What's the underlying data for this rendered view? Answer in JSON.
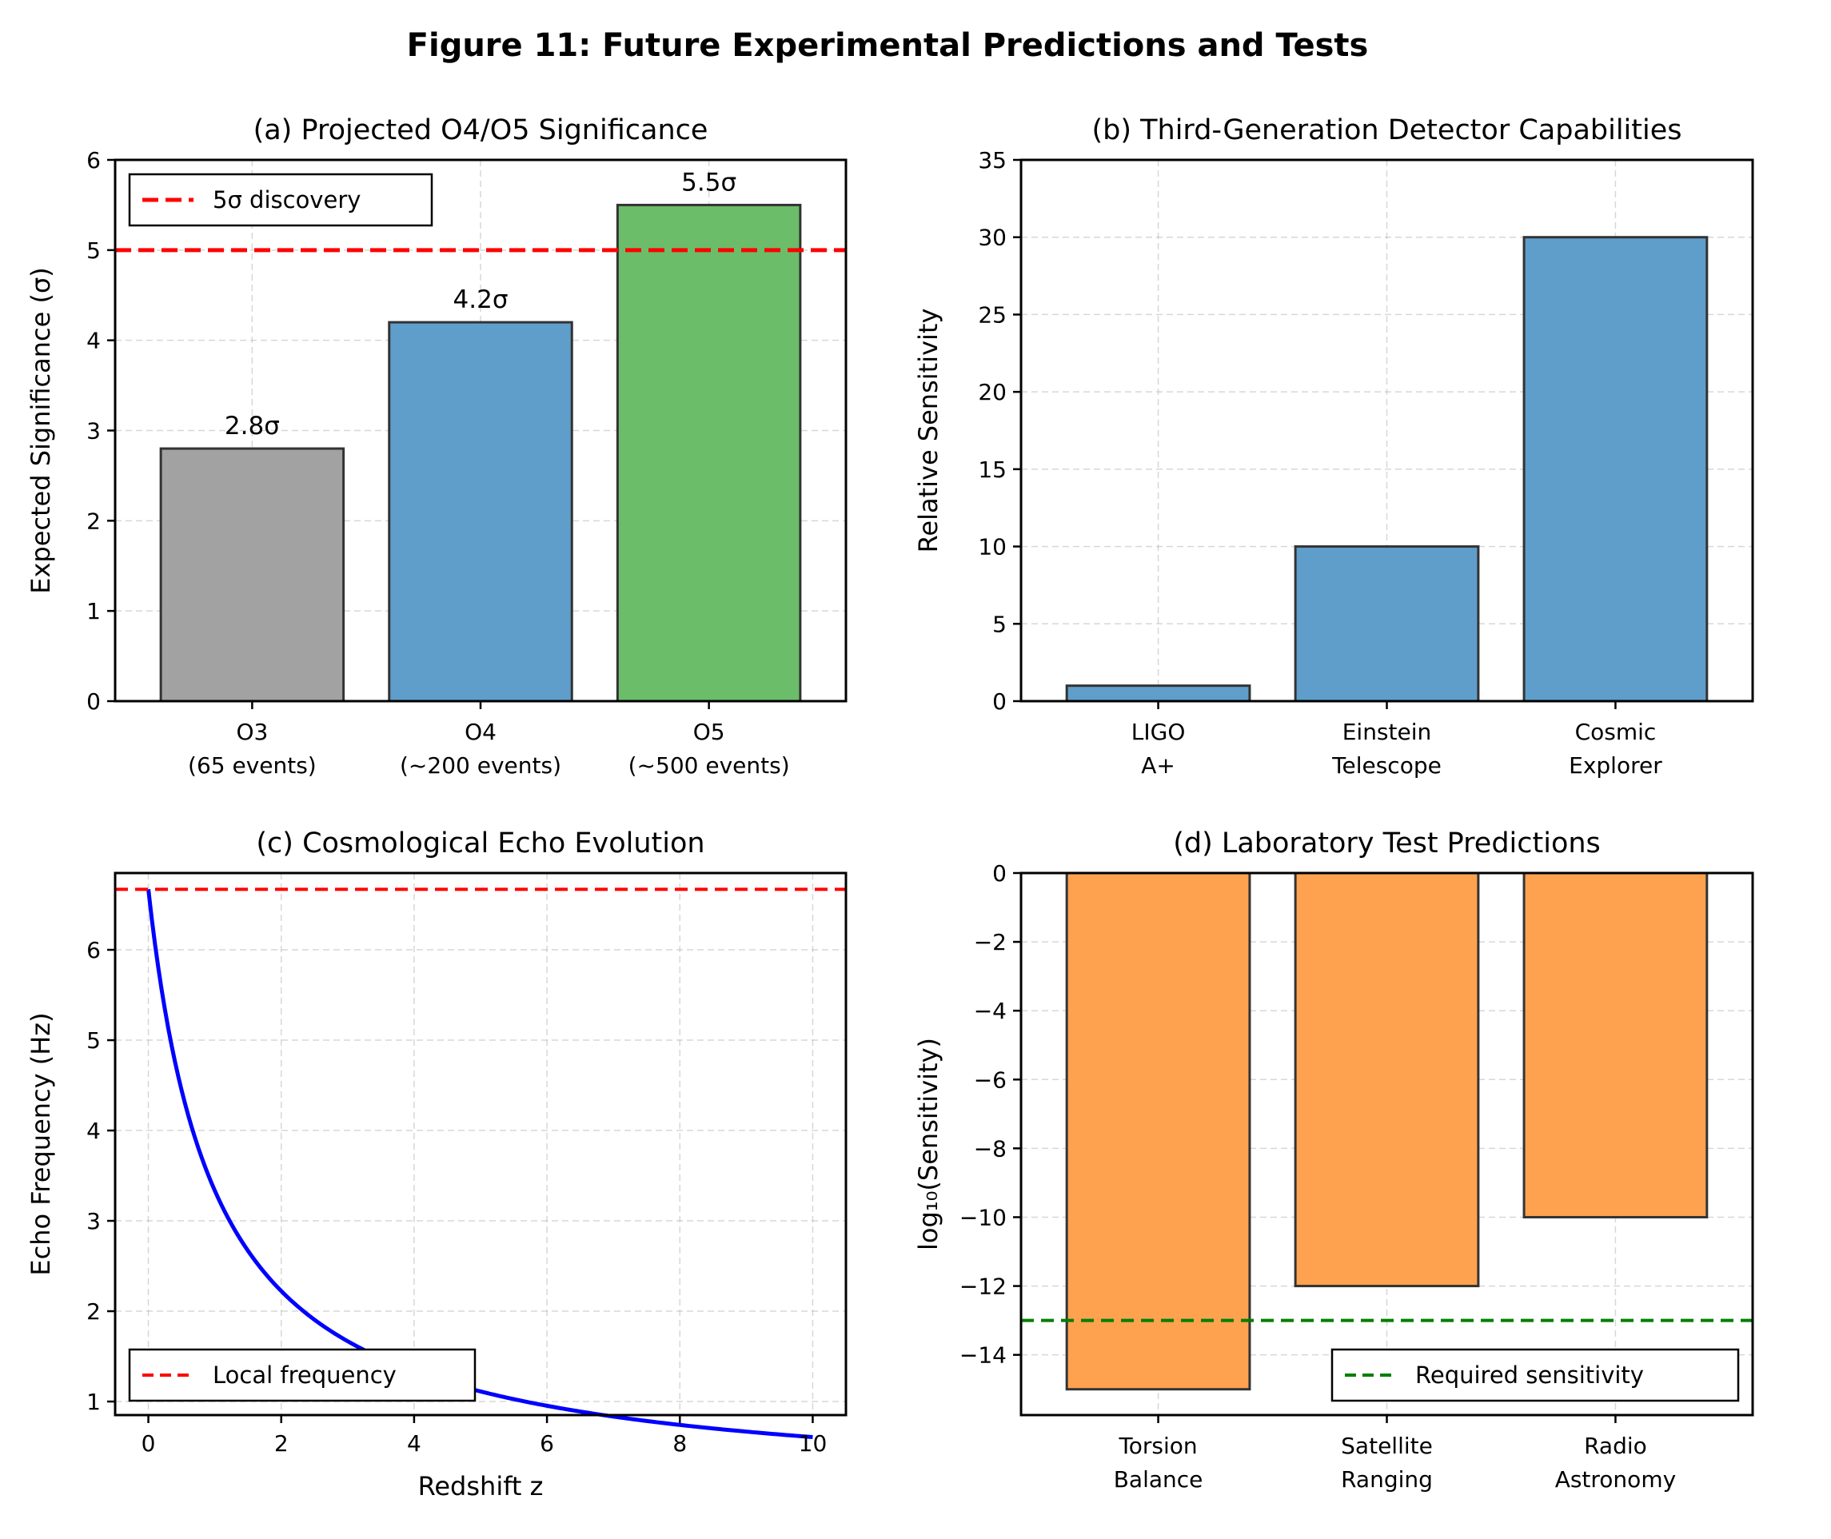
{
  "figure_title": "Figure 11: Future Experimental Predictions and Tests",
  "chart_data": [
    {
      "id": "a",
      "type": "bar",
      "title": "(a) Projected O4/O5 Significance",
      "xlabel": "",
      "ylabel": "Expected Significance (σ)",
      "categories": [
        [
          "O3",
          "(65 events)"
        ],
        [
          "O4",
          "(~200 events)"
        ],
        [
          "O5",
          "(~500 events)"
        ]
      ],
      "values": [
        2.8,
        4.2,
        5.5
      ],
      "value_labels": [
        "2.8σ",
        "4.2σ",
        "5.5σ"
      ],
      "bar_colors": [
        "#a2a2a2",
        "#5f9ecb",
        "#6cbd6a"
      ],
      "ylim": [
        0,
        6
      ],
      "yticks": [
        "0",
        "1",
        "2",
        "3",
        "4",
        "5",
        "6"
      ],
      "hline": {
        "y": 5,
        "color": "#ff0000",
        "style": "dashed"
      },
      "legend": {
        "position": "top-left",
        "entries": [
          "5σ discovery"
        ]
      },
      "grid": true
    },
    {
      "id": "b",
      "type": "bar",
      "title": "(b) Third-Generation Detector Capabilities",
      "xlabel": "",
      "ylabel": "Relative Sensitivity",
      "categories": [
        [
          "LIGO",
          "A+"
        ],
        [
          "Einstein",
          "Telescope"
        ],
        [
          "Cosmic",
          "Explorer"
        ]
      ],
      "values": [
        1,
        10,
        30
      ],
      "bar_colors": [
        "#5f9ecb",
        "#5f9ecb",
        "#5f9ecb"
      ],
      "ylim": [
        0,
        35
      ],
      "yticks": [
        "0",
        "5",
        "10",
        "15",
        "20",
        "25",
        "30",
        "35"
      ],
      "grid": true
    },
    {
      "id": "c",
      "type": "line",
      "title": "(c) Cosmological Echo Evolution",
      "xlabel": "Redshift z",
      "ylabel": "Echo Frequency (Hz)",
      "series": [
        {
          "color": "#0000ff",
          "x": [
            0,
            0.25,
            0.5,
            0.75,
            1,
            1.5,
            2,
            2.5,
            3,
            4,
            5,
            6,
            7,
            8,
            9,
            10
          ],
          "y": [
            6.67,
            5.34,
            4.45,
            3.81,
            3.34,
            2.67,
            2.22,
            1.91,
            1.67,
            1.33,
            1.11,
            0.95,
            0.83,
            0.74,
            0.67,
            0.61
          ]
        }
      ],
      "xlim": [
        -0.5,
        10.5
      ],
      "ylim": [
        0.85,
        6.85
      ],
      "xticks": [
        "0",
        "2",
        "4",
        "6",
        "8",
        "10"
      ],
      "yticks": [
        "1",
        "2",
        "3",
        "4",
        "5",
        "6"
      ],
      "hline": {
        "y": 6.67,
        "color": "#ff0000",
        "style": "dashed"
      },
      "legend": {
        "position": "bottom-left",
        "entries": [
          "Local frequency"
        ]
      },
      "grid": true
    },
    {
      "id": "d",
      "type": "bar",
      "title": "(d) Laboratory Test Predictions",
      "xlabel": "",
      "ylabel": "log₁₀(Sensitivity)",
      "categories": [
        [
          "Torsion",
          "Balance"
        ],
        [
          "Satellite",
          "Ranging"
        ],
        [
          "Radio",
          "Astronomy"
        ]
      ],
      "values": [
        -15,
        -12,
        -10
      ],
      "bar_colors": [
        "#ffa24f",
        "#ffa24f",
        "#ffa24f"
      ],
      "ylim": [
        -15.75,
        0
      ],
      "yticks": [
        "0",
        "−2",
        "−4",
        "−6",
        "−8",
        "−10",
        "−12",
        "−14"
      ],
      "hline": {
        "y": -13,
        "color": "#007f00",
        "style": "dashed"
      },
      "legend": {
        "position": "bottom-right",
        "entries": [
          "Required sensitivity"
        ]
      },
      "grid": true
    }
  ]
}
